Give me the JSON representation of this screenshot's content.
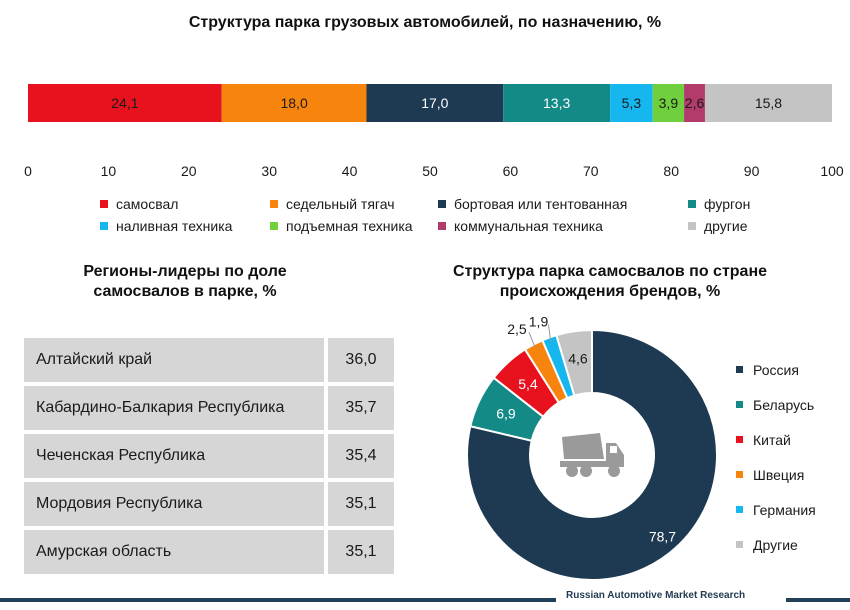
{
  "bar_chart": {
    "title": "Структура парка грузовых автомобилей, по назначению, %",
    "legend": [
      {
        "label": "самосвал",
        "color": "#e8121f"
      },
      {
        "label": "седельный тягач",
        "color": "#f7850d"
      },
      {
        "label": "бортовая или тентованная",
        "color": "#1d3a52"
      },
      {
        "label": "фургон",
        "color": "#138a86"
      },
      {
        "label": "наливная техника",
        "color": "#16b7ef"
      },
      {
        "label": "подъемная техника",
        "color": "#6fcf3d"
      },
      {
        "label": "коммунальная техника",
        "color": "#b23b6c"
      },
      {
        "label": "другие",
        "color": "#c4c4c4"
      }
    ]
  },
  "regions": {
    "title_line1": "Регионы-лидеры по доле",
    "title_line2": "самосвалов в парке, %",
    "rows": [
      {
        "name": "Алтайский край",
        "value": "36,0"
      },
      {
        "name": "Кабардино-Балкария Республика",
        "value": "35,7"
      },
      {
        "name": "Чеченская Республика",
        "value": "35,4"
      },
      {
        "name": "Мордовия Республика",
        "value": "35,1"
      },
      {
        "name": "Амурская область",
        "value": "35,1"
      }
    ]
  },
  "donut": {
    "title_line1": "Структура парка самосвалов по стране",
    "title_line2": "происхождения брендов, %",
    "center_icon": "dump-truck-icon",
    "legend": [
      {
        "label": "Россия",
        "color": "#1d3a52"
      },
      {
        "label": "Беларусь",
        "color": "#138a86"
      },
      {
        "label": "Китай",
        "color": "#e8121f"
      },
      {
        "label": "Швеция",
        "color": "#f7850d"
      },
      {
        "label": "Германия",
        "color": "#16b7ef"
      },
      {
        "label": "Другие",
        "color": "#c4c4c4"
      }
    ]
  },
  "footer": {
    "text": "Russian Automotive Market Research"
  },
  "chart_data": [
    {
      "type": "bar",
      "orientation": "horizontal-stacked",
      "title": "Структура парка грузовых автомобилей, по назначению, %",
      "series": [
        {
          "name": "самосвал",
          "value": 24.1,
          "label": "24,1"
        },
        {
          "name": "седельный тягач",
          "value": 18.0,
          "label": "18,0"
        },
        {
          "name": "бортовая или тентованная",
          "value": 17.0,
          "label": "17,0"
        },
        {
          "name": "фургон",
          "value": 13.3,
          "label": "13,3"
        },
        {
          "name": "наливная техника",
          "value": 5.3,
          "label": "5,3"
        },
        {
          "name": "подъемная техника",
          "value": 3.9,
          "label": "3,9"
        },
        {
          "name": "коммунальная техника",
          "value": 2.6,
          "label": "2,6"
        },
        {
          "name": "другие",
          "value": 15.8,
          "label": "15,8"
        }
      ],
      "xlim": [
        0,
        100
      ],
      "xticks": [
        "0",
        "10",
        "20",
        "30",
        "40",
        "50",
        "60",
        "70",
        "80",
        "90",
        "100"
      ],
      "legend_position": "bottom"
    },
    {
      "type": "table",
      "title": "Регионы-лидеры по доле самосвалов в парке, %",
      "rows": [
        [
          "Алтайский край",
          "36,0"
        ],
        [
          "Кабардино-Балкария Республика",
          "35,7"
        ],
        [
          "Чеченская Республика",
          "35,4"
        ],
        [
          "Мордовия Республика",
          "35,1"
        ],
        [
          "Амурская область",
          "35,1"
        ]
      ]
    },
    {
      "type": "pie",
      "variant": "donut",
      "title": "Структура парка самосвалов по стране происхождения брендов, %",
      "slices": [
        {
          "name": "Россия",
          "value": 78.7,
          "label": "78,7"
        },
        {
          "name": "Беларусь",
          "value": 6.9,
          "label": "6,9"
        },
        {
          "name": "Китай",
          "value": 5.4,
          "label": "5,4"
        },
        {
          "name": "Швеция",
          "value": 2.5,
          "label": "2,5"
        },
        {
          "name": "Германия",
          "value": 1.9,
          "label": "1,9"
        },
        {
          "name": "Другие",
          "value": 4.6,
          "label": "4,6"
        }
      ],
      "legend_position": "right"
    }
  ]
}
